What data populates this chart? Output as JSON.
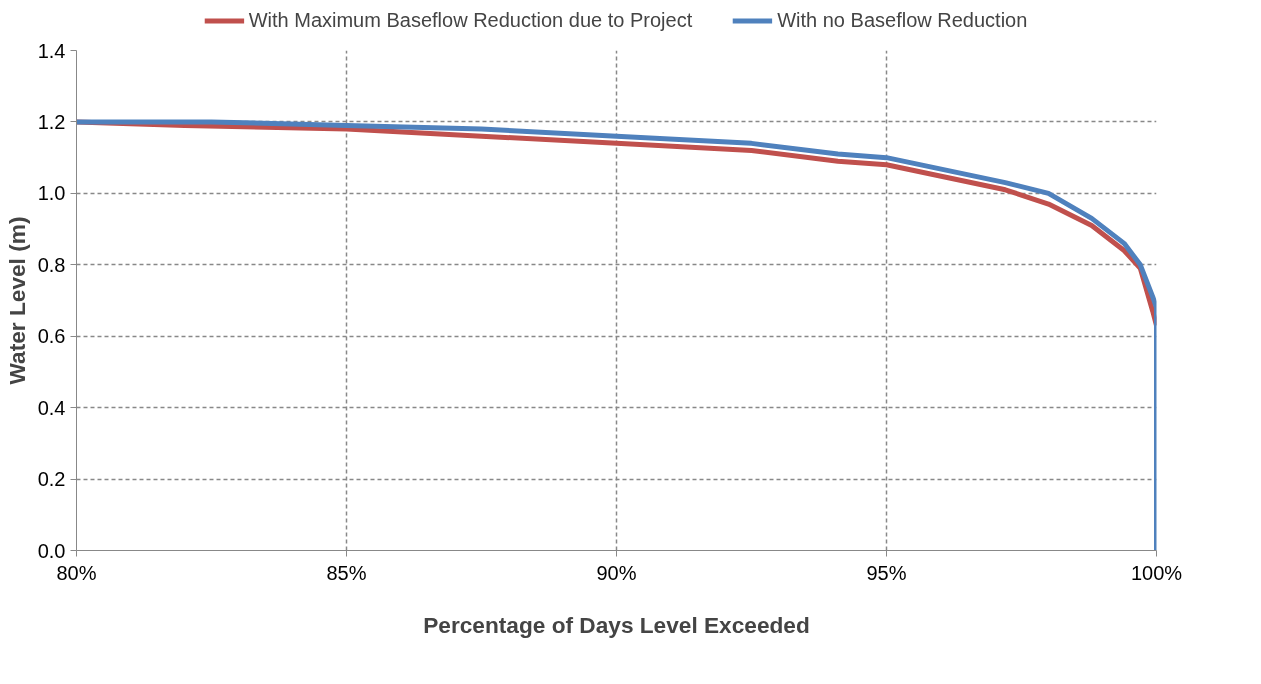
{
  "chart_data": {
    "type": "line",
    "xlabel": "Percentage of Days Level Exceeded",
    "ylabel": "Water Level (m)",
    "xlim": [
      80,
      100
    ],
    "xticks": [
      {
        "value": 80,
        "label": "80%"
      },
      {
        "value": 85,
        "label": "85%"
      },
      {
        "value": 90,
        "label": "90%"
      },
      {
        "value": 95,
        "label": "95%"
      },
      {
        "value": 100,
        "label": "100%"
      }
    ],
    "ylim": [
      0,
      1.4
    ],
    "yticks": [
      {
        "value": 0,
        "label": "0.0"
      },
      {
        "value": 0.2,
        "label": "0.2"
      },
      {
        "value": 0.4,
        "label": "0.4"
      },
      {
        "value": 0.6,
        "label": "0.6"
      },
      {
        "value": 0.8,
        "label": "0.8"
      },
      {
        "value": 1,
        "label": "1.0"
      },
      {
        "value": 1.2,
        "label": "1.2"
      },
      {
        "value": 1.4,
        "label": "1.4"
      }
    ],
    "grid": true,
    "legend": "top",
    "marker": "none",
    "line_style": "solid",
    "series": [
      {
        "name": "With Maximum Baseflow Reduction due to Project",
        "color": "#c0504d",
        "x": [
          80,
          82,
          85,
          87.5,
          90,
          92.5,
          94.1,
          95,
          97.2,
          98,
          98.8,
          99.4,
          99.7,
          99.93,
          100
        ],
        "values": [
          1.2,
          1.19,
          1.18,
          1.16,
          1.14,
          1.12,
          1.09,
          1.08,
          1.01,
          0.97,
          0.91,
          0.84,
          0.79,
          0.67,
          0.63
        ]
      },
      {
        "name": "With no Baseflow Reduction",
        "color": "#4f81bd",
        "x": [
          80,
          82.5,
          85,
          87.5,
          90,
          92.5,
          94.1,
          95,
          97.2,
          98,
          98.8,
          99.4,
          99.7,
          99.93,
          100,
          100
        ],
        "values": [
          1.2,
          1.2,
          1.19,
          1.18,
          1.16,
          1.14,
          1.11,
          1.1,
          1.03,
          1.0,
          0.93,
          0.86,
          0.8,
          0.71,
          0.68,
          0
        ]
      }
    ]
  }
}
